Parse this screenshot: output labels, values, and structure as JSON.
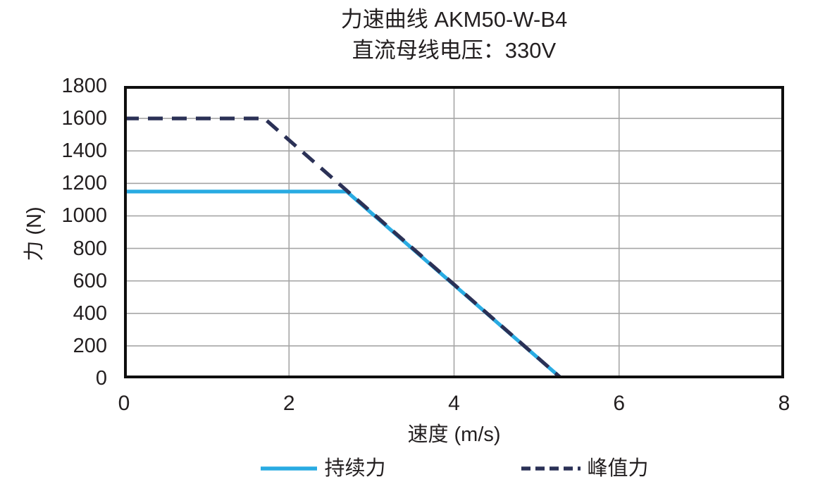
{
  "chart_data": {
    "type": "line",
    "title": "力速曲线 AKM50-W-B4",
    "subtitle": "直流母线电压：330V",
    "xlabel": "速度 (m/s)",
    "ylabel": "力 (N)",
    "xlim": [
      0,
      8
    ],
    "ylim": [
      0,
      1800
    ],
    "xticks": [
      0,
      2,
      4,
      6,
      8
    ],
    "yticks": [
      0,
      200,
      400,
      600,
      800,
      1000,
      1200,
      1400,
      1600,
      1800
    ],
    "grid": true,
    "legend_position": "bottom",
    "series": [
      {
        "key": "continuous-force",
        "name": "持续力",
        "style": "solid",
        "color": "#29ABE2",
        "points": [
          [
            0,
            1150
          ],
          [
            2.7,
            1150
          ],
          [
            5.3,
            0
          ]
        ]
      },
      {
        "key": "peak-force",
        "name": "峰值力",
        "style": "dashed",
        "color": "#2B3156",
        "points": [
          [
            0,
            1600
          ],
          [
            1.7,
            1600
          ],
          [
            5.3,
            0
          ]
        ]
      }
    ]
  },
  "colors": {
    "text": "#231F20",
    "grid": "#A6A6A6",
    "frame": "#0E0E0E",
    "background": "#FFFFFF"
  }
}
